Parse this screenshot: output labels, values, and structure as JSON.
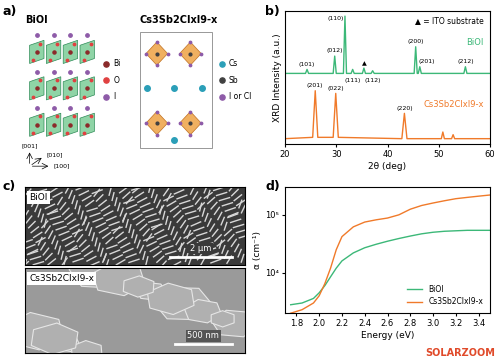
{
  "diagram": {
    "panel": "a)",
    "structures": [
      {
        "title": "BiOI",
        "legend": [
          {
            "label": "Bi",
            "color": "#8b2a2a"
          },
          {
            "label": "O",
            "color": "#e04040"
          },
          {
            "label": "I",
            "color": "#8e5ba8"
          }
        ]
      },
      {
        "title": "Cs3Sb2ClxI9-x",
        "legend": [
          {
            "label": "Cs",
            "color": "#2b9fb8"
          },
          {
            "label": "Sb",
            "color": "#404040"
          },
          {
            "label": "I or Cl",
            "color": "#8e5ba8"
          }
        ]
      }
    ],
    "directions": [
      "[001]",
      "[100]",
      "[010]"
    ]
  },
  "chart_data": [
    {
      "panel": "b)",
      "type": "line",
      "x_label": "2θ (deg)",
      "y_label": "XRD Intensity (a.u.)",
      "subtitle": "▲ = ITO substrate",
      "xlim": [
        20,
        60
      ],
      "xticks": [
        20,
        30,
        40,
        50,
        60
      ],
      "ylim": [
        0,
        10
      ],
      "tick_labels": "x",
      "series": [
        {
          "name": "BiOI",
          "color": "#3cb878",
          "x": [
            20,
            24.0,
            24.3,
            24.6,
            29.4,
            29.7,
            30.0,
            31.4,
            31.7,
            32.0,
            32.9,
            33.2,
            33.5,
            35.1,
            35.4,
            35.7,
            36.8,
            37.1,
            37.4,
            45.2,
            45.5,
            45.8,
            46.0,
            46.3,
            46.6,
            54.9,
            55.2,
            55.5,
            60
          ],
          "values": [
            5.3,
            5.3,
            5.6,
            5.3,
            5.3,
            6.6,
            5.3,
            5.3,
            9.6,
            5.3,
            5.3,
            5.6,
            5.3,
            5.3,
            5.7,
            5.3,
            5.3,
            5.5,
            5.3,
            5.3,
            7.3,
            5.3,
            5.3,
            5.8,
            5.3,
            5.3,
            5.8,
            5.3,
            5.3
          ]
        },
        {
          "name": "Cs3Sb2ClxI9-x",
          "color": "#f07a2a",
          "x": [
            20,
            25.4,
            25.9,
            26.4,
            29.4,
            29.9,
            30.4,
            42.8,
            43.3,
            43.8,
            50.5,
            50.8,
            51.1,
            52.5,
            52.8,
            53.1,
            60
          ],
          "values": [
            0.4,
            0.5,
            4.0,
            0.5,
            0.5,
            3.8,
            0.5,
            0.4,
            2.3,
            0.4,
            0.4,
            0.9,
            0.4,
            0.4,
            0.7,
            0.4,
            0.4
          ]
        }
      ],
      "annotations": [
        {
          "text": "(101)",
          "x": 24.3,
          "y": 5.8
        },
        {
          "text": "(012)",
          "x": 29.7,
          "y": 6.8
        },
        {
          "text": "(110)",
          "x": 29.9,
          "y": 9.2
        },
        {
          "text": "(111)",
          "x": 33.2,
          "y": 4.6
        },
        {
          "text": "▲",
          "x": 35.4,
          "y": 5.8
        },
        {
          "text": "(112)",
          "x": 37.1,
          "y": 4.6
        },
        {
          "text": "(200)",
          "x": 45.5,
          "y": 7.5
        },
        {
          "text": "(201)",
          "x": 47.6,
          "y": 6.0
        },
        {
          "text": "(212)",
          "x": 55.2,
          "y": 6.0
        },
        {
          "text": "(201)",
          "x": 25.9,
          "y": 4.2
        },
        {
          "text": "(022)",
          "x": 29.9,
          "y": 4.0
        },
        {
          "text": "(220)",
          "x": 43.3,
          "y": 2.5
        }
      ]
    },
    {
      "panel": "d)",
      "type": "line",
      "x_label": "Energy (eV)",
      "y_label": "α (cm⁻¹)",
      "log": "y",
      "legend": "lower right",
      "xlim": [
        1.7,
        3.5
      ],
      "xticks": [
        1.8,
        2.0,
        2.2,
        2.4,
        2.6,
        2.8,
        3.0,
        3.2,
        3.4
      ],
      "ylim": [
        2000,
        300000
      ],
      "yticks": [
        {
          "value": 10000,
          "label": "10⁴"
        },
        {
          "value": 100000,
          "label": "10⁵"
        }
      ],
      "series": [
        {
          "name": "BiOI",
          "color": "#3cb878",
          "x": [
            1.75,
            1.85,
            1.95,
            2.0,
            2.05,
            2.1,
            2.15,
            2.2,
            2.3,
            2.4,
            2.5,
            2.6,
            2.7,
            2.8,
            2.9,
            3.0,
            3.1,
            3.2,
            3.3,
            3.4,
            3.5
          ],
          "values": [
            2800,
            3000,
            3600,
            4500,
            6000,
            8500,
            12000,
            16000,
            22000,
            27000,
            31000,
            35000,
            39000,
            43000,
            47000,
            50000,
            52000,
            53000,
            54000,
            54000,
            54000
          ]
        },
        {
          "name": "Cs3Sb2ClxI9-x",
          "color": "#f07a2a",
          "x": [
            1.75,
            1.85,
            1.95,
            2.0,
            2.05,
            2.1,
            2.15,
            2.2,
            2.3,
            2.4,
            2.5,
            2.6,
            2.7,
            2.8,
            2.9,
            3.0,
            3.1,
            3.2,
            3.3,
            3.4,
            3.5
          ],
          "values": [
            2000,
            2300,
            3000,
            4000,
            6500,
            12000,
            25000,
            42000,
            62000,
            75000,
            82000,
            88000,
            100000,
            125000,
            145000,
            160000,
            175000,
            190000,
            200000,
            210000,
            220000
          ]
        }
      ]
    }
  ],
  "images": {
    "panel": "c)",
    "items": [
      {
        "label": "BiOI",
        "scale_bar": "2 μm"
      },
      {
        "label": "Cs3Sb2ClxI9-x",
        "scale_bar": "500 nm"
      }
    ]
  },
  "watermark": "SOLARZOOM"
}
